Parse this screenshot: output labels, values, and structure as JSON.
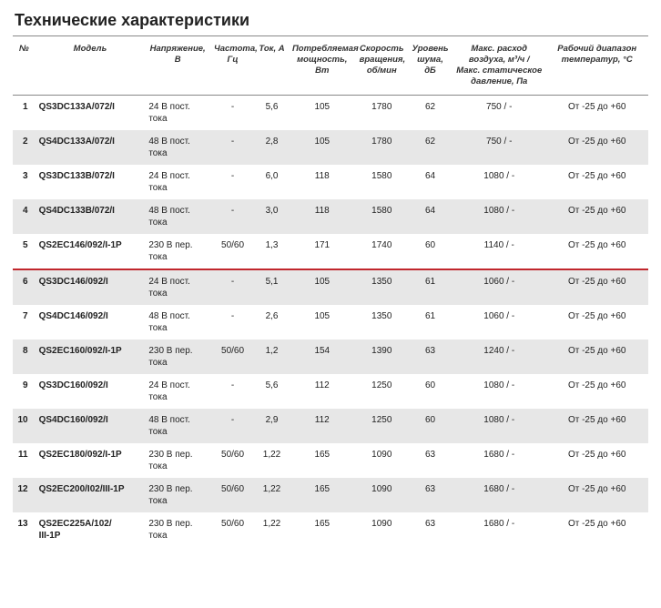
{
  "title": "Технические характеристики",
  "separator_color": "#c1272d",
  "alt_row_color": "#e7e7e7",
  "columns": [
    {
      "key": "n",
      "label": "№"
    },
    {
      "key": "model",
      "label": "Модель"
    },
    {
      "key": "voltage",
      "label": "Напряжение, В"
    },
    {
      "key": "freq",
      "label": "Частота, Гц"
    },
    {
      "key": "current",
      "label": "Ток, А"
    },
    {
      "key": "power",
      "label": "Потребляемая мощность, Вт"
    },
    {
      "key": "speed",
      "label": "Скорость вращения, об/мин"
    },
    {
      "key": "noise",
      "label": "Уровень шума, дБ"
    },
    {
      "key": "flow",
      "label": "Макс. расход воздуха, м³/ч / Макс. статическое давление, Па"
    },
    {
      "key": "temp",
      "label": "Рабочий диапазон температур, °C"
    }
  ],
  "separator_after_row": 5,
  "rows": [
    {
      "n": "1",
      "model": "QS3DC133A/072/I",
      "voltage": "24 В пост. тока",
      "freq": "-",
      "current": "5,6",
      "power": "105",
      "speed": "1780",
      "noise": "62",
      "flow": "750 / -",
      "temp": "От -25 до +60"
    },
    {
      "n": "2",
      "model": "QS4DC133A/072/I",
      "voltage": "48 В пост. тока",
      "freq": "-",
      "current": "2,8",
      "power": "105",
      "speed": "1780",
      "noise": "62",
      "flow": "750 / -",
      "temp": "От -25 до +60"
    },
    {
      "n": "3",
      "model": "QS3DC133B/072/I",
      "voltage": "24 В пост. тока",
      "freq": "-",
      "current": "6,0",
      "power": "118",
      "speed": "1580",
      "noise": "64",
      "flow": "1080 / -",
      "temp": "От -25 до +60"
    },
    {
      "n": "4",
      "model": "QS4DC133B/072/I",
      "voltage": "48 В пост. тока",
      "freq": "-",
      "current": "3,0",
      "power": "118",
      "speed": "1580",
      "noise": "64",
      "flow": "1080 / -",
      "temp": "От -25 до +60"
    },
    {
      "n": "5",
      "model": "QS2EC146/092/I-1P",
      "voltage": "230 В пер. тока",
      "freq": "50/60",
      "current": "1,3",
      "power": "171",
      "speed": "1740",
      "noise": "60",
      "flow": "1140 / -",
      "temp": "От -25 до +60"
    },
    {
      "n": "6",
      "model": "QS3DC146/092/I",
      "voltage": "24 В пост. тока",
      "freq": "-",
      "current": "5,1",
      "power": "105",
      "speed": "1350",
      "noise": "61",
      "flow": "1060 / -",
      "temp": "От -25 до +60"
    },
    {
      "n": "7",
      "model": "QS4DC146/092/I",
      "voltage": "48 В пост. тока",
      "freq": "-",
      "current": "2,6",
      "power": "105",
      "speed": "1350",
      "noise": "61",
      "flow": "1060 / -",
      "temp": "От -25 до +60"
    },
    {
      "n": "8",
      "model": "QS2EC160/092/I-1P",
      "voltage": "230 В пер. тока",
      "freq": "50/60",
      "current": "1,2",
      "power": "154",
      "speed": "1390",
      "noise": "63",
      "flow": "1240 / -",
      "temp": "От -25 до +60"
    },
    {
      "n": "9",
      "model": "QS3DC160/092/I",
      "voltage": "24 В пост. тока",
      "freq": "-",
      "current": "5,6",
      "power": "112",
      "speed": "1250",
      "noise": "60",
      "flow": "1080 / -",
      "temp": "От -25 до +60"
    },
    {
      "n": "10",
      "model": "QS4DC160/092/I",
      "voltage": "48 В пост. тока",
      "freq": "-",
      "current": "2,9",
      "power": "112",
      "speed": "1250",
      "noise": "60",
      "flow": "1080 / -",
      "temp": "От -25 до +60"
    },
    {
      "n": "11",
      "model": "QS2EC180/092/I-1P",
      "voltage": "230 В пер. тока",
      "freq": "50/60",
      "current": "1,22",
      "power": "165",
      "speed": "1090",
      "noise": "63",
      "flow": "1680 / -",
      "temp": "От -25 до +60"
    },
    {
      "n": "12",
      "model": "QS2EC200/I02/III-1P",
      "voltage": "230 В пер. тока",
      "freq": "50/60",
      "current": "1,22",
      "power": "165",
      "speed": "1090",
      "noise": "63",
      "flow": "1680 / -",
      "temp": "От -25 до +60"
    },
    {
      "n": "13",
      "model": "QS2EC225A/102/\nIII-1P",
      "voltage": "230 В пер. тока",
      "freq": "50/60",
      "current": "1,22",
      "power": "165",
      "speed": "1090",
      "noise": "63",
      "flow": "1680 / -",
      "temp": "От -25 до +60"
    }
  ]
}
